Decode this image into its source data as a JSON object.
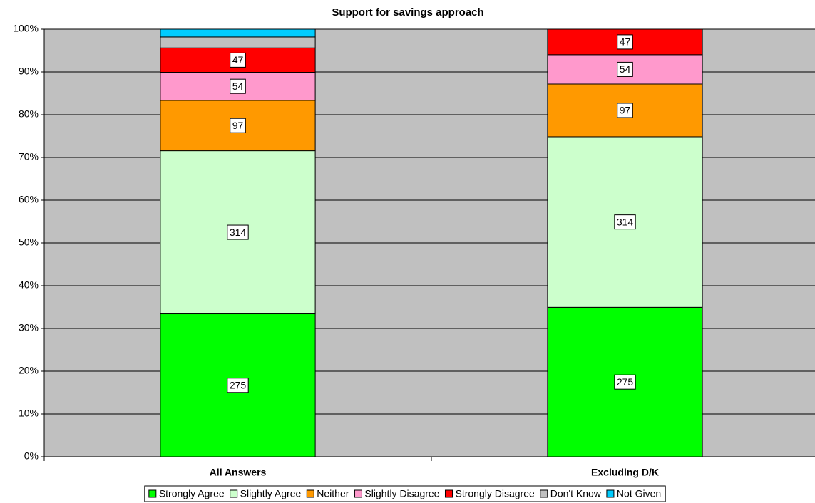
{
  "chart_data": {
    "type": "bar",
    "stacking": "percent",
    "title": "Support for savings approach",
    "categories": [
      "All Answers",
      "Excluding D/K"
    ],
    "series": [
      {
        "name": "Strongly Agree",
        "color": "#00ff00",
        "values": [
          275,
          275
        ],
        "show_labels": true
      },
      {
        "name": "Slightly Agree",
        "color": "#ccffcc",
        "values": [
          314,
          314
        ],
        "show_labels": true
      },
      {
        "name": "Neither",
        "color": "#ff9900",
        "values": [
          97,
          97
        ],
        "show_labels": true
      },
      {
        "name": "Slightly Disagree",
        "color": "#ff99cc",
        "values": [
          54,
          54
        ],
        "show_labels": true
      },
      {
        "name": "Strongly Disagree",
        "color": "#ff0000",
        "values": [
          47,
          47
        ],
        "show_labels": true
      },
      {
        "name": "Don't Know",
        "color": "#c0c0c0",
        "values": [
          21,
          0
        ],
        "show_labels": false
      },
      {
        "name": "Not Given",
        "color": "#00ccff",
        "values": [
          15,
          0
        ],
        "show_labels": false
      }
    ],
    "ylim": [
      0,
      100
    ],
    "yticks": [
      {
        "value": 0,
        "label": "0%"
      },
      {
        "value": 10,
        "label": "10%"
      },
      {
        "value": 20,
        "label": "20%"
      },
      {
        "value": 30,
        "label": "30%"
      },
      {
        "value": 40,
        "label": "40%"
      },
      {
        "value": 50,
        "label": "50%"
      },
      {
        "value": 60,
        "label": "60%"
      },
      {
        "value": 70,
        "label": "70%"
      },
      {
        "value": 80,
        "label": "80%"
      },
      {
        "value": 90,
        "label": "90%"
      },
      {
        "value": 100,
        "label": "100%"
      }
    ],
    "grid": true,
    "legend": "bottom"
  }
}
